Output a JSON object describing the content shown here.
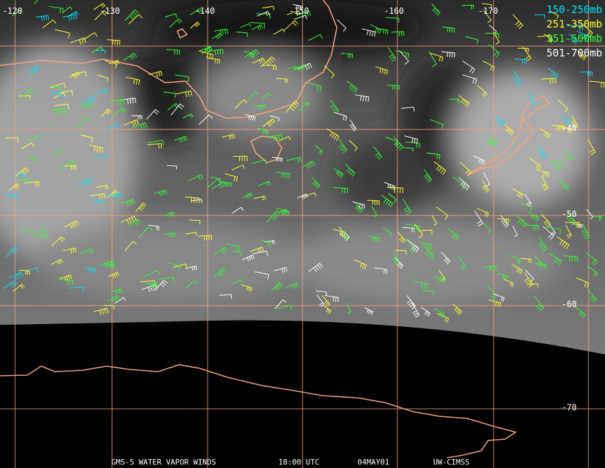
{
  "longitude_labels": [
    "-120",
    "-130",
    "-140",
    "-150",
    "-160",
    "-170"
  ],
  "latitude_labels": [
    "-40",
    "-50",
    "-60",
    "-70"
  ],
  "legend": [
    "150-250mb",
    "251-350mb",
    "351-500mb",
    "501-700mb"
  ],
  "footer": [
    "GMS-5 WATER VAPOR WINDS",
    "18:00 UTC",
    "04MAY01",
    "UW-CIMSS"
  ]
}
